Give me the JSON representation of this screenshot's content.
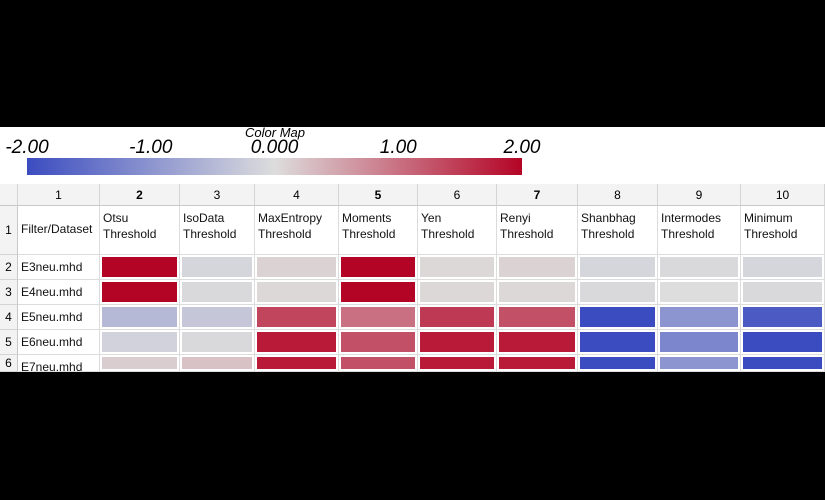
{
  "colormap": {
    "title": "Color Map",
    "ticks": [
      {
        "label": "-2.00",
        "value": -2.0
      },
      {
        "label": "-1.00",
        "value": -1.0
      },
      {
        "label": "0.000",
        "value": 0.0
      },
      {
        "label": "1.00",
        "value": 1.0
      },
      {
        "label": "2.00",
        "value": 2.0
      }
    ],
    "range": [
      -2.0,
      2.0
    ],
    "colors": {
      "low": "#3b4cc0",
      "mid": "#dddddd",
      "high": "#b40426"
    }
  },
  "table": {
    "column_numbers": [
      "1",
      "2",
      "3",
      "4",
      "5",
      "6",
      "7",
      "8",
      "9",
      "10"
    ],
    "header_row_number": "1",
    "header_cells": [
      "Filter/Dataset",
      "Otsu\nThreshold",
      "IsoData\nThreshold",
      "MaxEntropy\nThreshold",
      "Moments\nThreshold",
      "Yen\nThreshold",
      "Renyi\nThreshold",
      "Shanbhag\nThreshold",
      "Intermodes\nThreshold",
      "Minimum\nThreshold"
    ]
  },
  "chart_data": {
    "type": "heatmap",
    "title": "Color Map",
    "color_range": [
      -2.0,
      2.0
    ],
    "columns": [
      "Otsu Threshold",
      "IsoData Threshold",
      "MaxEntropy Threshold",
      "Moments Threshold",
      "Yen Threshold",
      "Renyi Threshold",
      "Shanbhag Threshold",
      "Intermodes Threshold",
      "Minimum Threshold"
    ],
    "rows": [
      {
        "num": "2",
        "name": "E3neu.mhd",
        "values": [
          2.0,
          -0.1,
          0.1,
          2.0,
          0.05,
          0.1,
          -0.1,
          -0.05,
          -0.1
        ]
      },
      {
        "num": "3",
        "name": "E4neu.mhd",
        "values": [
          2.0,
          -0.05,
          0.05,
          2.0,
          0.05,
          0.05,
          -0.05,
          0.0,
          -0.05
        ]
      },
      {
        "num": "4",
        "name": "E5neu.mhd",
        "values": [
          -0.5,
          -0.3,
          1.4,
          1.0,
          1.5,
          1.3,
          -2.0,
          -1.0,
          -1.8
        ]
      },
      {
        "num": "5",
        "name": "E6neu.mhd",
        "values": [
          -0.15,
          -0.05,
          1.8,
          1.3,
          1.8,
          1.8,
          -2.0,
          -1.2,
          -2.0
        ]
      },
      {
        "num": "6",
        "name": "E7neu.mhd",
        "values": [
          0.15,
          0.25,
          1.8,
          1.3,
          1.8,
          1.8,
          -2.0,
          -1.0,
          -2.0
        ]
      }
    ]
  }
}
